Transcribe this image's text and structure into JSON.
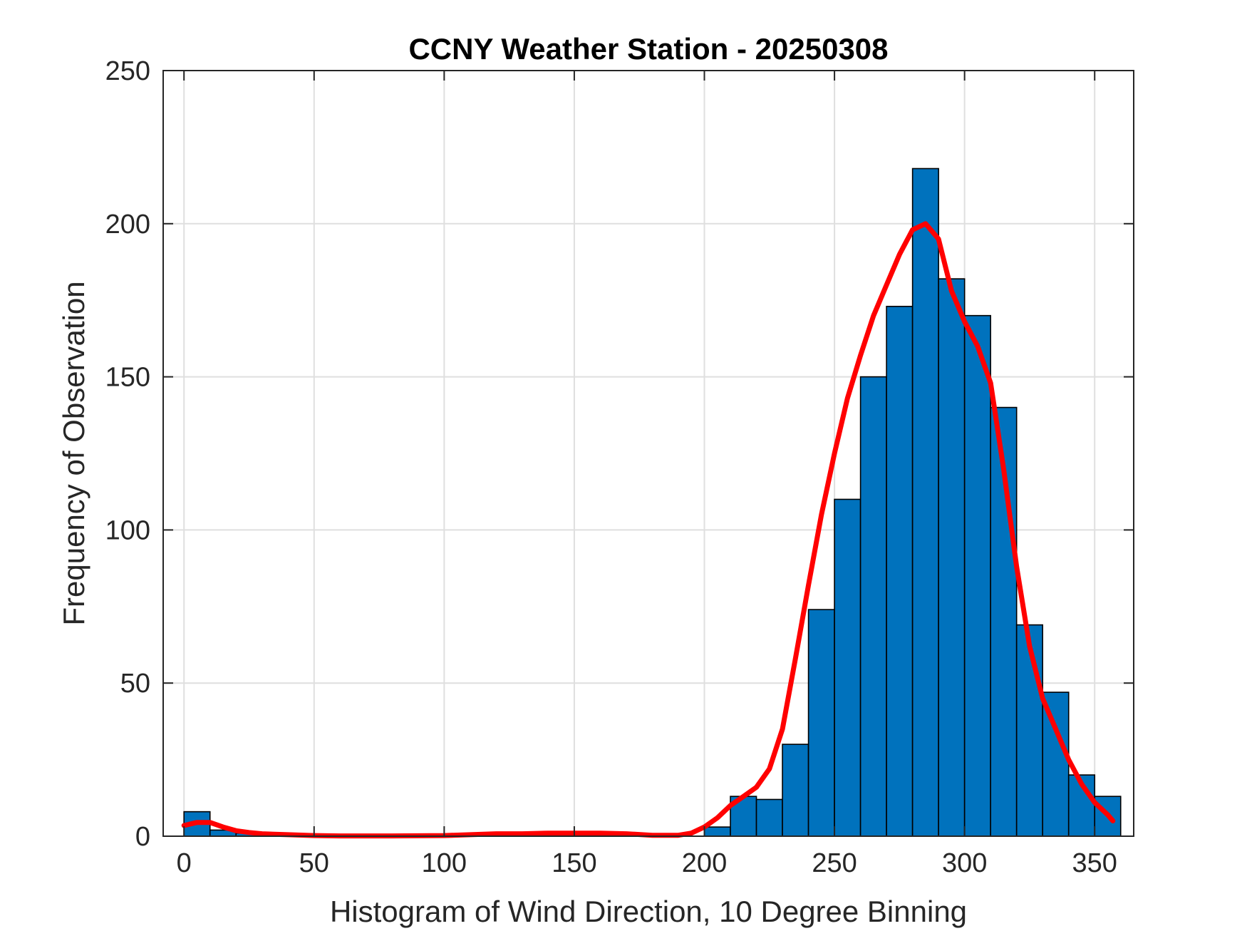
{
  "chart_data": {
    "type": "bar",
    "title": "CCNY Weather Station - 20250308",
    "xlabel": "Histogram of Wind Direction, 10 Degree Binning",
    "ylabel": "Frequency of Observation",
    "xlim": [
      -8,
      365
    ],
    "ylim": [
      0,
      250
    ],
    "xticks": [
      0,
      50,
      100,
      150,
      200,
      250,
      300,
      350
    ],
    "yticks": [
      0,
      50,
      100,
      150,
      200,
      250
    ],
    "grid": true,
    "bin_width": 10,
    "bar_color": "#0072BD",
    "bar_edge_color": "#000000",
    "line_color": "#FF0000",
    "bins": [
      {
        "start": 0,
        "count": 8
      },
      {
        "start": 10,
        "count": 2
      },
      {
        "start": 20,
        "count": 1
      },
      {
        "start": 30,
        "count": 1
      },
      {
        "start": 40,
        "count": 0
      },
      {
        "start": 50,
        "count": 0
      },
      {
        "start": 60,
        "count": 0
      },
      {
        "start": 70,
        "count": 0
      },
      {
        "start": 80,
        "count": 0
      },
      {
        "start": 90,
        "count": 0
      },
      {
        "start": 100,
        "count": 0
      },
      {
        "start": 110,
        "count": 0
      },
      {
        "start": 120,
        "count": 1
      },
      {
        "start": 130,
        "count": 0
      },
      {
        "start": 140,
        "count": 1
      },
      {
        "start": 150,
        "count": 0
      },
      {
        "start": 160,
        "count": 1
      },
      {
        "start": 170,
        "count": 0
      },
      {
        "start": 180,
        "count": 0
      },
      {
        "start": 190,
        "count": 0
      },
      {
        "start": 200,
        "count": 3
      },
      {
        "start": 210,
        "count": 13
      },
      {
        "start": 220,
        "count": 12
      },
      {
        "start": 230,
        "count": 30
      },
      {
        "start": 240,
        "count": 74
      },
      {
        "start": 250,
        "count": 110
      },
      {
        "start": 260,
        "count": 150
      },
      {
        "start": 270,
        "count": 173
      },
      {
        "start": 280,
        "count": 218
      },
      {
        "start": 290,
        "count": 182
      },
      {
        "start": 300,
        "count": 170
      },
      {
        "start": 310,
        "count": 140
      },
      {
        "start": 320,
        "count": 69
      },
      {
        "start": 330,
        "count": 47
      },
      {
        "start": 340,
        "count": 20
      },
      {
        "start": 350,
        "count": 13
      }
    ],
    "fit_curve": {
      "x": [
        0,
        5,
        10,
        15,
        20,
        25,
        30,
        40,
        50,
        60,
        80,
        100,
        110,
        120,
        130,
        140,
        150,
        160,
        170,
        180,
        190,
        195,
        200,
        205,
        210,
        215,
        220,
        225,
        230,
        235,
        240,
        245,
        250,
        255,
        260,
        265,
        270,
        275,
        280,
        285,
        290,
        295,
        300,
        305,
        310,
        315,
        320,
        325,
        330,
        335,
        340,
        345,
        350,
        355,
        357
      ],
      "y": [
        3.5,
        4.5,
        4.5,
        3,
        1.8,
        1.2,
        0.8,
        0.5,
        0.2,
        0.1,
        0.1,
        0.2,
        0.5,
        0.8,
        0.8,
        1,
        1,
        1,
        0.8,
        0.3,
        0.3,
        1,
        3,
        6,
        10,
        13,
        16,
        22,
        35,
        58,
        82,
        105,
        125,
        143,
        157,
        170,
        180,
        190,
        198,
        200,
        195,
        178,
        168,
        160,
        148,
        120,
        88,
        62,
        45,
        35,
        25,
        17,
        11,
        7,
        5
      ]
    }
  }
}
